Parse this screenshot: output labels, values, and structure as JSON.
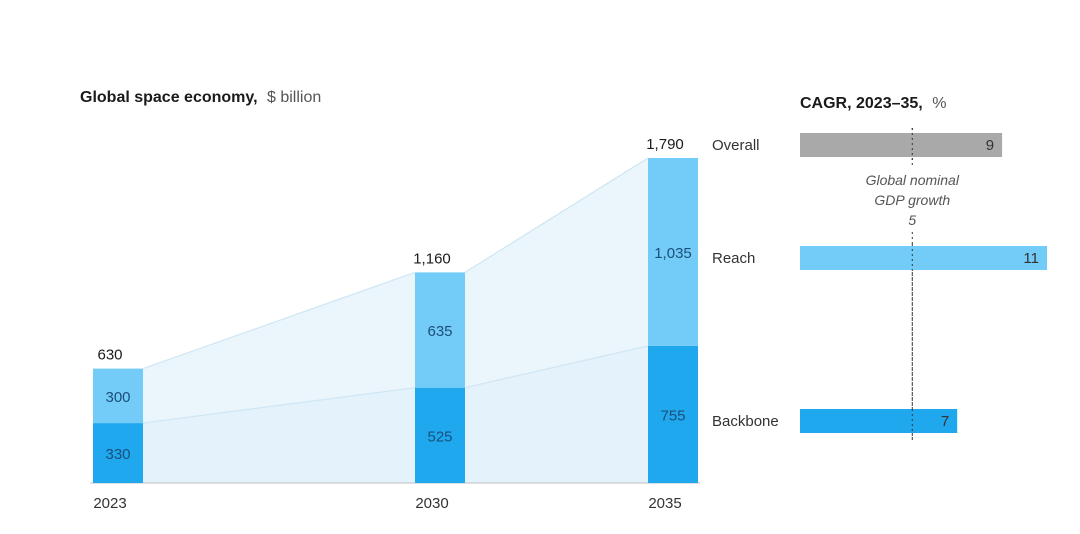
{
  "chart_data": [
    {
      "type": "bar",
      "stacked": true,
      "title": "Global space economy,",
      "unit": "$ billion",
      "categories": [
        "2023",
        "2030",
        "2035"
      ],
      "series": [
        {
          "name": "Backbone",
          "values": [
            330,
            525,
            755
          ],
          "value_labels": [
            "330",
            "525",
            "755"
          ],
          "color": "#1fa8ee"
        },
        {
          "name": "Reach",
          "values": [
            300,
            635,
            1035
          ],
          "value_labels": [
            "300",
            "635",
            "1,035"
          ],
          "color": "#73cbf7"
        }
      ],
      "totals": [
        630,
        1160,
        1790
      ],
      "total_labels": [
        "630",
        "1,160",
        "1,790"
      ],
      "connector_fill": "#eaf5fc",
      "connector_line": "#cfe6f4",
      "label_color": "#1b4f7a"
    },
    {
      "type": "bar",
      "orientation": "horizontal",
      "title": "CAGR, 2023–35,",
      "unit": "%",
      "categories": [
        "Overall",
        "Reach",
        "Backbone"
      ],
      "values": [
        9,
        11,
        7
      ],
      "value_labels": [
        "9",
        "11",
        "7"
      ],
      "colors": [
        "#a9a9a9",
        "#73cbf7",
        "#1fa8ee"
      ],
      "reference_line": {
        "value": 5,
        "value_label": "5",
        "label_line1": "Global nominal",
        "label_line2": "GDP growth"
      }
    }
  ]
}
